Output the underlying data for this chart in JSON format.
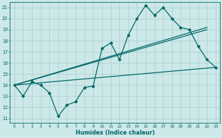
{
  "xlabel": "Humidex (Indice chaleur)",
  "bg_color": "#cce8e8",
  "grid_color": "#aacccc",
  "line_color": "#006666",
  "xlim": [
    -0.5,
    23.5
  ],
  "ylim": [
    10.6,
    21.5
  ],
  "yticks": [
    11,
    12,
    13,
    14,
    15,
    16,
    17,
    18,
    19,
    20,
    21
  ],
  "xticks": [
    0,
    1,
    2,
    3,
    4,
    5,
    6,
    7,
    8,
    9,
    10,
    11,
    12,
    13,
    14,
    15,
    16,
    17,
    18,
    19,
    20,
    21,
    22,
    23
  ],
  "series": [
    {
      "x": [
        0,
        1,
        2,
        3,
        4,
        5,
        6,
        7,
        8,
        9,
        10,
        11,
        12,
        13,
        14,
        15,
        16,
        17,
        18,
        19,
        20,
        21,
        22,
        23
      ],
      "y": [
        14,
        13,
        14.3,
        14,
        13.3,
        11.2,
        12.2,
        12.5,
        13.8,
        13.9,
        17.3,
        17.8,
        16.3,
        18.5,
        20.0,
        21.2,
        20.3,
        21.0,
        20.0,
        19.2,
        19.0,
        17.5,
        16.3,
        15.6
      ],
      "marker": "D",
      "markersize": 1.8,
      "linewidth": 0.9,
      "zorder": 5
    },
    {
      "x": [
        0,
        22
      ],
      "y": [
        14.0,
        19.0
      ],
      "marker": null,
      "linewidth": 0.9,
      "zorder": 3
    },
    {
      "x": [
        0,
        22
      ],
      "y": [
        14.0,
        19.2
      ],
      "marker": null,
      "linewidth": 0.9,
      "zorder": 3
    },
    {
      "x": [
        0,
        23
      ],
      "y": [
        14.0,
        15.6
      ],
      "marker": null,
      "linewidth": 0.9,
      "zorder": 3
    }
  ],
  "figwidth": 3.2,
  "figheight": 2.0,
  "dpi": 100
}
